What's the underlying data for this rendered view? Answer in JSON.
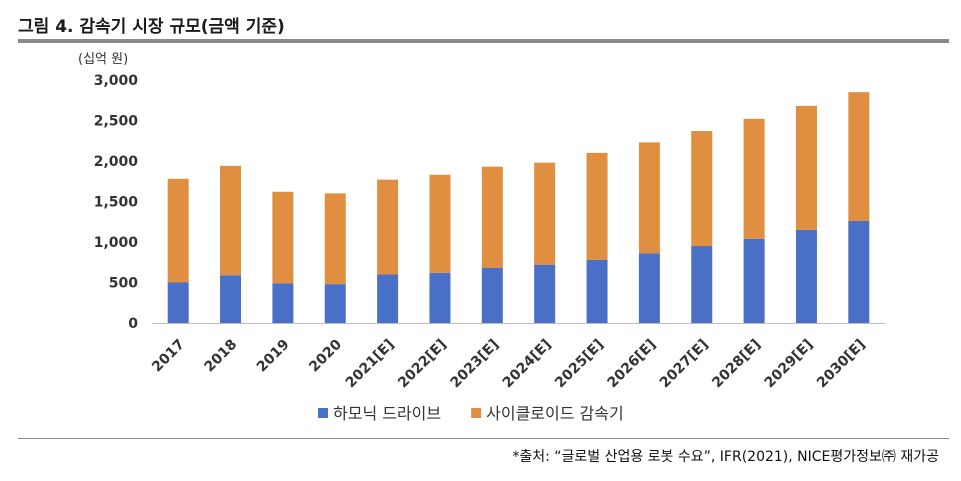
{
  "figure": {
    "title": "그림 4. 감속기 시장 규모(금액 기준)",
    "unit": "(십억 원)",
    "source": "*출처: “글로벌 산업용 로봇 수요”, IFR(2021), NICE평가정보㈜ 재가공"
  },
  "chart_data": {
    "type": "bar",
    "stacked": true,
    "title": "그림 4. 감속기 시장 규모(금액 기준)",
    "ylabel": "(십억 원)",
    "xlabel": "",
    "categories": [
      "2017",
      "2018",
      "2019",
      "2020",
      "2021[E]",
      "2022[E]",
      "2023[E]",
      "2024[E]",
      "2025[E]",
      "2026[E]",
      "2027[E]",
      "2028[E]",
      "2029[E]",
      "2030[E]"
    ],
    "series": [
      {
        "name": "하모닉 드라이브",
        "color": "#4a6fc7",
        "values": [
          500,
          590,
          490,
          480,
          600,
          620,
          680,
          720,
          780,
          860,
          950,
          1040,
          1150,
          1260
        ]
      },
      {
        "name": "사이클로이드 감속기",
        "color": "#e08e3f",
        "values": [
          1280,
          1350,
          1130,
          1120,
          1170,
          1210,
          1250,
          1260,
          1320,
          1370,
          1420,
          1480,
          1530,
          1590
        ]
      }
    ],
    "ylim": [
      0,
      3000
    ],
    "yticks": [
      0,
      500,
      1000,
      1500,
      2000,
      2500,
      3000
    ],
    "ytick_labels": [
      "0",
      "500",
      "1,000",
      "1,500",
      "2,000",
      "2,500",
      "3,000"
    ],
    "grid": false,
    "legend": "bottom"
  }
}
